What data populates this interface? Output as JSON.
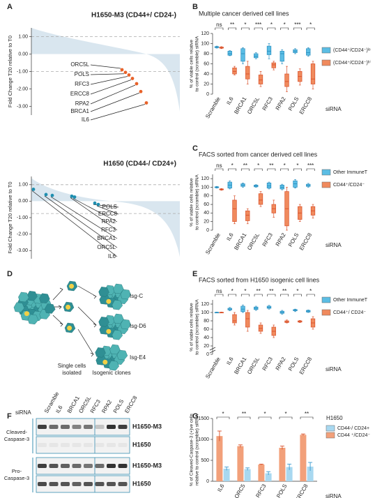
{
  "panel_labels": [
    "A",
    "B",
    "C",
    "D",
    "E",
    "F",
    "G"
  ],
  "chart_data": [
    {
      "type": "scatter",
      "title": "H1650-M3 (CD44+/ CD24-)",
      "title_color": "#e07a2e",
      "y_label": "Fold Change T20 relative to T0",
      "color": "#e8622a",
      "categories": [
        "ORC5L",
        "POLS",
        "RFC3",
        "ERCC8",
        "RPA2",
        "BRCA1",
        "IL6"
      ],
      "values": [
        -0.9,
        -1.05,
        -1.2,
        -1.4,
        -1.7,
        -2.15,
        -2.8
      ],
      "ylim": [
        -3.5,
        1.5
      ],
      "yticks": [
        {
          "value": 1,
          "label": "1.00"
        },
        {
          "value": 0,
          "label": "0.00"
        },
        {
          "value": -1,
          "label": "-1.00"
        },
        {
          "value": -2,
          "label": "-2.00"
        },
        {
          "value": -3,
          "label": "-3.00"
        }
      ],
      "ref_lines": [
        1,
        -1
      ]
    },
    {
      "type": "scatter",
      "title": "H1650 (CD44-/ CD24+)",
      "title_color": "#1f7f94",
      "y_label": "Fold Change T20 relative to T0",
      "color": "#1f8fb0",
      "categories": [
        "POLS",
        "ERCC8",
        "RPA2",
        "RFC3",
        "BRCA1",
        "ORC5L",
        "IL6"
      ],
      "values": [
        -0.12,
        -0.2,
        0.25,
        0.3,
        0.35,
        0.4,
        0.72
      ],
      "ylim": [
        -3.5,
        1.5
      ],
      "yticks": [
        {
          "value": 1,
          "label": "1.00"
        },
        {
          "value": 0,
          "label": "0.00"
        },
        {
          "value": -1,
          "label": "-1.00"
        },
        {
          "value": -2,
          "label": "-2.00"
        },
        {
          "value": -3,
          "label": "-3.00"
        }
      ],
      "ref_lines": [
        1,
        -0.75
      ]
    },
    {
      "type": "box",
      "title": "Multiple cancer derived cell lines",
      "y_label": [
        "% of viable cells relative",
        "to control (scramble) siRNA"
      ],
      "x_label": "siRNA",
      "categories": [
        "Scramble",
        "IL6",
        "BRCA1",
        "ORC5L",
        "RFC3",
        "RPA2",
        "POLS",
        "ERCC8"
      ],
      "significance": [
        "ns",
        "**",
        "*",
        "***",
        "*",
        "*",
        "***",
        "*"
      ],
      "ylim": [
        0,
        120
      ],
      "yticks": [
        0,
        20,
        40,
        60,
        80,
        100,
        120
      ],
      "series": [
        {
          "name": "(CD44⁺/CD24⁻)ˡᵒ",
          "color": "#5bbde4",
          "min": [
            91,
            76,
            60,
            70,
            70,
            60,
            80,
            75
          ],
          "q1": [
            92,
            77,
            65,
            72,
            78,
            65,
            82,
            77
          ],
          "median": [
            93,
            80,
            80,
            75,
            85,
            80,
            85,
            82
          ],
          "q3": [
            94,
            85,
            90,
            80,
            95,
            85,
            88,
            90
          ],
          "max": [
            95,
            86,
            92,
            82,
            100,
            88,
            90,
            92
          ]
        },
        {
          "name": "(CD44⁺/CD24⁻)ʰⁱ",
          "color": "#f08a5d",
          "min": [
            90,
            38,
            20,
            15,
            48,
            5,
            18,
            10
          ],
          "q1": [
            91,
            40,
            30,
            20,
            52,
            15,
            25,
            20
          ],
          "median": [
            92,
            45,
            40,
            28,
            58,
            25,
            35,
            30
          ],
          "q3": [
            93,
            52,
            55,
            38,
            62,
            40,
            45,
            60
          ],
          "max": [
            94,
            55,
            65,
            45,
            65,
            55,
            50,
            65
          ]
        }
      ]
    },
    {
      "type": "box",
      "title": "FACS sorted from cancer derived cell lines",
      "y_label": [
        "% of viable cells relative",
        "to control (scramble) siRNA"
      ],
      "x_label": "siRNA",
      "categories": [
        "Scramble",
        "IL6",
        "BRCA1",
        "ORC5L",
        "RFC3",
        "RPA2",
        "POLS",
        "ERCC8"
      ],
      "significance": [
        "ns",
        "*",
        "**",
        "*",
        "**",
        "*",
        "*",
        "***"
      ],
      "ylim": [
        0,
        130
      ],
      "yticks": [
        0,
        20,
        40,
        60,
        80,
        100,
        120
      ],
      "series": [
        {
          "name": "Other ImmuneT",
          "color": "#5bbde4",
          "min": [
            98,
            96,
            100,
            100,
            96,
            94,
            98,
            100
          ],
          "q1": [
            99,
            98,
            102,
            101,
            98,
            96,
            100,
            102
          ],
          "median": [
            100,
            105,
            105,
            103,
            103,
            100,
            108,
            104
          ],
          "q3": [
            101,
            112,
            108,
            105,
            110,
            105,
            115,
            107
          ],
          "max": [
            102,
            115,
            110,
            106,
            112,
            107,
            118,
            109
          ]
        },
        {
          "name": "CD44⁺/CD24⁻",
          "color": "#f08a5d",
          "min": [
            93,
            15,
            15,
            55,
            30,
            0,
            20,
            28
          ],
          "q1": [
            94,
            20,
            22,
            60,
            40,
            10,
            25,
            35
          ],
          "median": [
            95,
            50,
            35,
            70,
            50,
            50,
            40,
            45
          ],
          "q3": [
            96,
            70,
            45,
            85,
            60,
            90,
            55,
            55
          ],
          "max": [
            97,
            80,
            50,
            90,
            70,
            100,
            60,
            60
          ]
        }
      ]
    },
    {
      "type": "box",
      "title": "FACS sorted from H1650 isogenic cell lines",
      "y_label": [
        "% of viable cells relative",
        "to control (scramble) siRNA"
      ],
      "x_label": "siRNA",
      "axis_break": true,
      "categories": [
        "Scramble",
        "IL6",
        "BRCA1",
        "ORC5L",
        "RFC3",
        "RPA2",
        "POLS",
        "ERCC8"
      ],
      "significance": [
        "ns",
        "*",
        "*",
        "**",
        "**",
        "**",
        "*",
        "*"
      ],
      "ylim": [
        0,
        130
      ],
      "yticks": [
        0,
        20,
        40,
        60,
        80,
        100,
        120
      ],
      "series": [
        {
          "name": "Other ImmuneT",
          "color": "#5bbde4",
          "min": [
            99,
            104,
            100,
            105,
            108,
            96,
            102,
            100
          ],
          "q1": [
            99.5,
            106,
            102,
            107,
            110,
            98,
            104,
            101
          ],
          "median": [
            100,
            108,
            108,
            110,
            112,
            100,
            105,
            103
          ],
          "q3": [
            100.5,
            110,
            115,
            113,
            115,
            103,
            107,
            105
          ],
          "max": [
            101,
            112,
            118,
            115,
            117,
            105,
            108,
            106
          ]
        },
        {
          "name": "CD44⁺/ CD24⁻",
          "color": "#f08a5d",
          "min": [
            99,
            70,
            55,
            50,
            40,
            75,
            76,
            60
          ],
          "q1": [
            99.5,
            75,
            65,
            55,
            45,
            76,
            77,
            65
          ],
          "median": [
            100,
            80,
            85,
            62,
            55,
            78,
            78,
            75
          ],
          "q3": [
            100.5,
            95,
            100,
            70,
            65,
            80,
            80,
            85
          ],
          "max": [
            101,
            100,
            105,
            75,
            70,
            82,
            81,
            90
          ]
        }
      ]
    },
    {
      "type": "bar",
      "y_label": [
        "% of  Cleaved-Caspase-3 (+)ve cells",
        "relative to  control (scramble) siRNA"
      ],
      "x_label": "siRNA",
      "legend_title": "H1650",
      "categories": [
        "IL6",
        "ORC5",
        "RFC3",
        "POLS",
        "ERCC8"
      ],
      "significance": [
        "*",
        "**",
        "*",
        "*",
        "**"
      ],
      "ylim": [
        0,
        1500
      ],
      "yticks": [
        0,
        500,
        1000,
        1500
      ],
      "series": [
        {
          "name": "CD44-/ CD24+",
          "color": "#a8d8f0",
          "values": [
            300,
            290,
            190,
            340,
            350
          ],
          "errors": [
            40,
            30,
            40,
            70,
            100
          ]
        },
        {
          "name": "CD44 ⁺/CD24⁻",
          "color": "#f2a07a",
          "values": [
            1080,
            840,
            400,
            800,
            1110
          ],
          "errors": [
            120,
            30,
            10,
            40,
            20
          ]
        }
      ]
    }
  ],
  "diagram": {
    "clones": [
      "Isg-C",
      "Isg-D6",
      "Isg-E4"
    ],
    "single_cells": [
      "Single cells",
      "isolated"
    ],
    "isogenic": "Isogenic clones"
  },
  "blot": {
    "sirna": "siRNA",
    "lanes": [
      "Scramble",
      "IL6",
      "BRCA1",
      "ORC5L",
      "RFC3",
      "RPA2",
      "POLS",
      "ERCC8"
    ],
    "cleaved": [
      "Cleaved-",
      "Caspase-3"
    ],
    "pro": [
      "Pro-",
      "Caspase-3"
    ],
    "rows": [
      "H1650-M3",
      "H1650",
      "H1650-M3",
      "H1650"
    ]
  }
}
